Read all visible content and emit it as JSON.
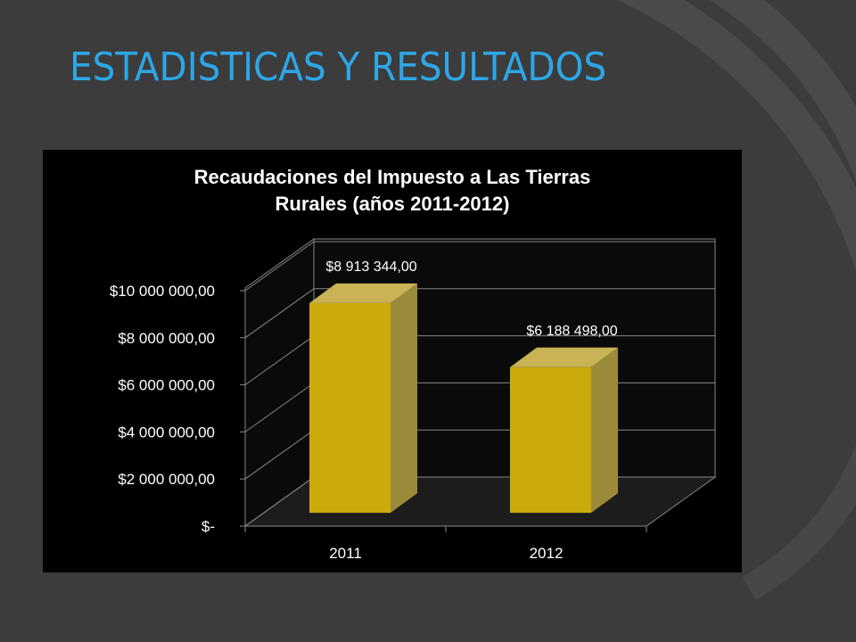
{
  "slide": {
    "title": "ESTADISTICAS Y RESULTADOS"
  },
  "colors": {
    "background": "#3c3c3c",
    "title": "#2ea6e6",
    "panel": "#000000",
    "bar_front": "#cbab0b",
    "bar_side": "#9c8a3b",
    "bar_top": "#c9b355"
  },
  "chart_data": {
    "type": "bar",
    "title_line1": "Recaudaciones del Impuesto  a Las Tierras",
    "title_line2": "Rurales (años 2011-2012)",
    "categories": [
      "2011",
      "2012"
    ],
    "values": [
      8913344.0,
      6188498.0
    ],
    "data_labels": [
      "$8 913 344,00",
      "$6 188 498,00"
    ],
    "yticks": [
      0,
      2000000,
      4000000,
      6000000,
      8000000,
      10000000
    ],
    "ytick_labels": [
      "$-",
      "$2 000 000,00",
      "$4 000 000,00",
      "$6 000 000,00",
      "$8 000 000,00",
      "$10 000 000,00"
    ],
    "ylim": [
      0,
      10000000
    ],
    "grid": true,
    "legend": "none"
  }
}
